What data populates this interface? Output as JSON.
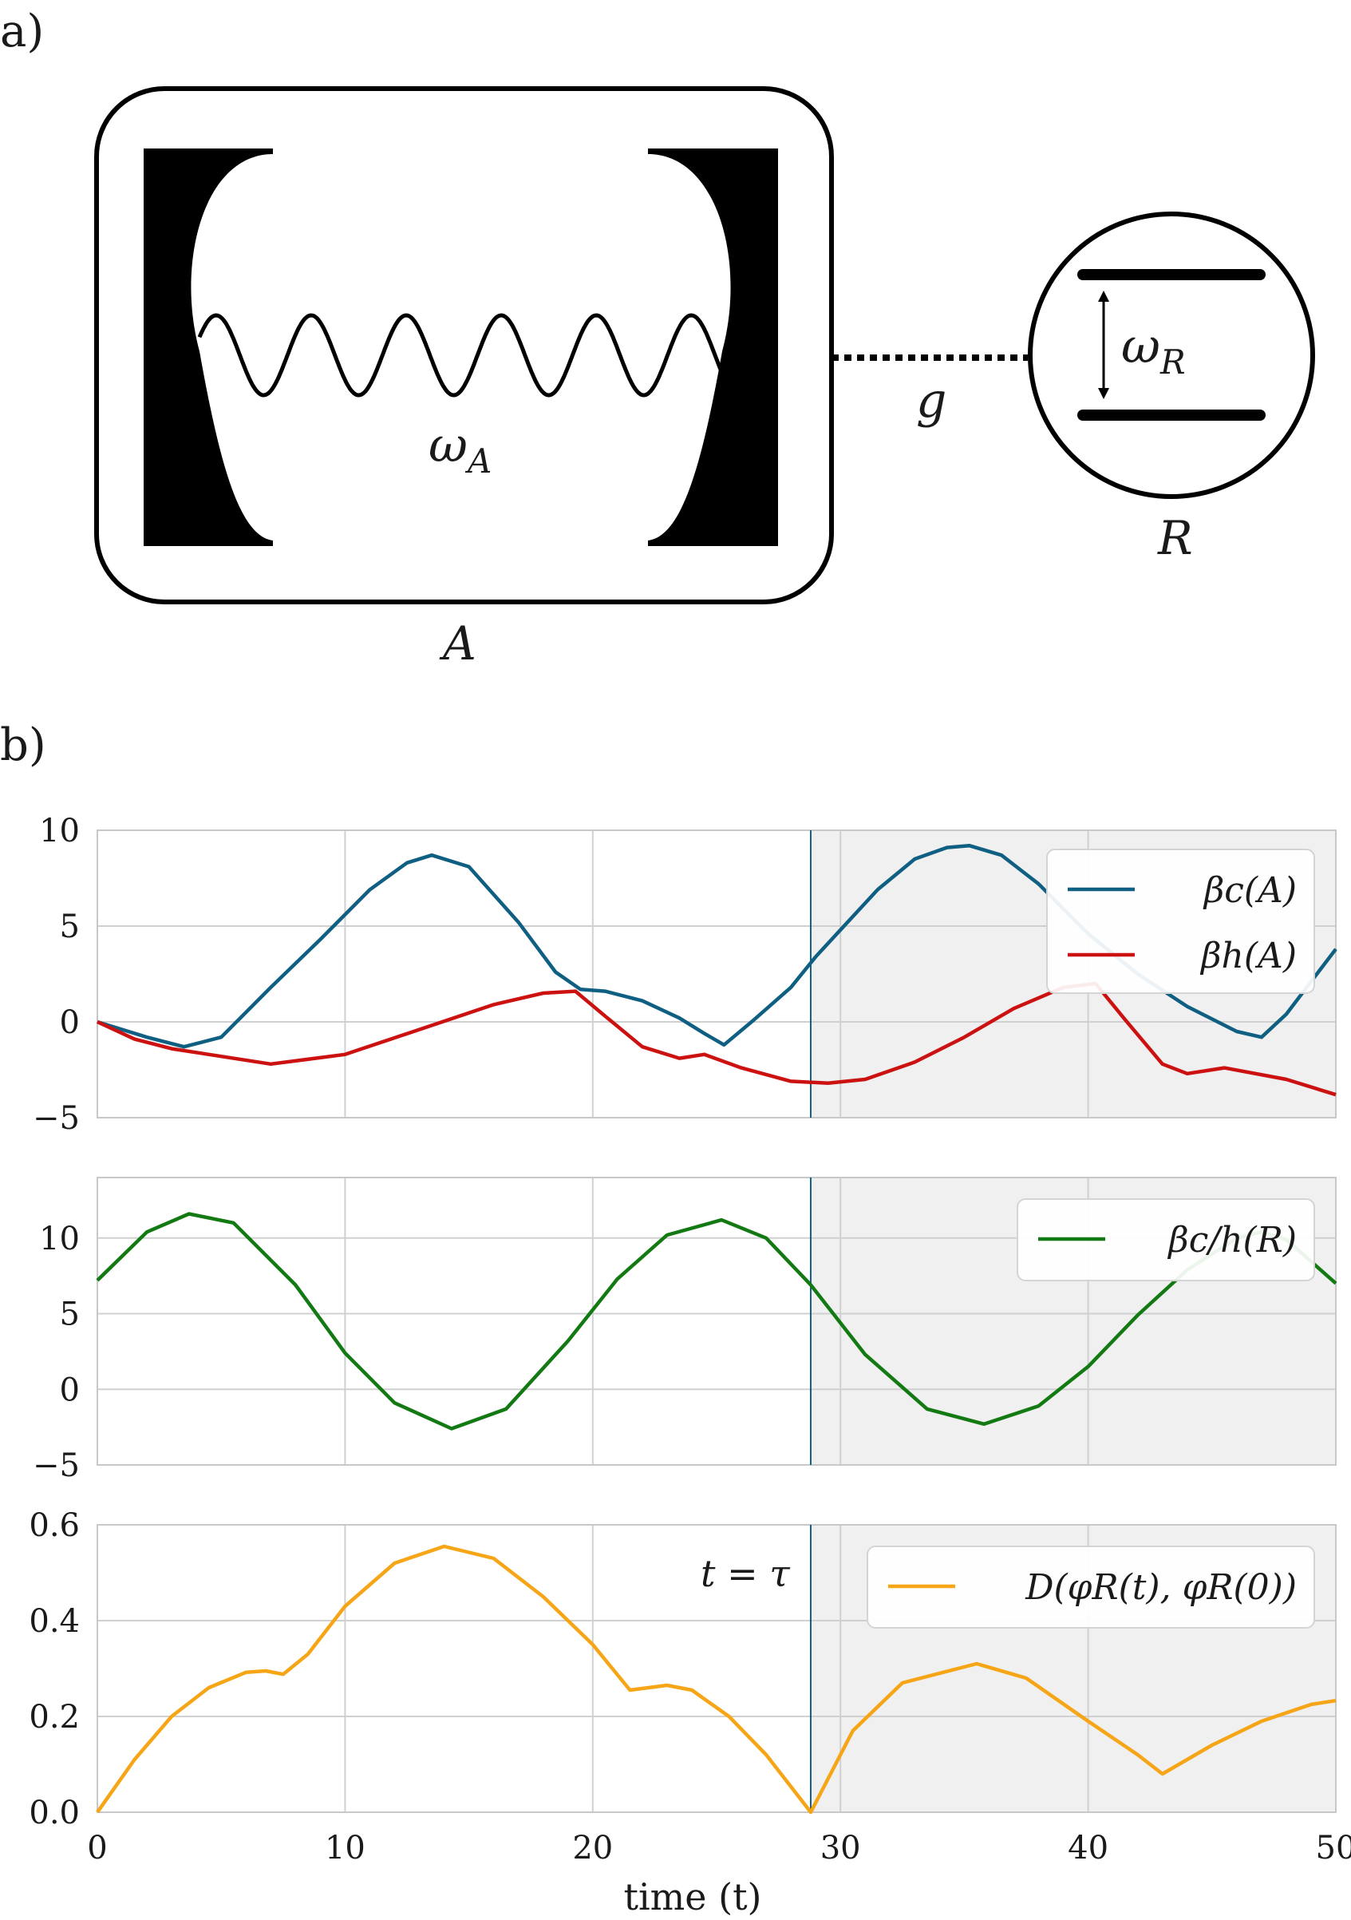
{
  "panel_a": {
    "panel_label": "a)",
    "cavity_label": "A",
    "cavity_freq": "ω",
    "cavity_freq_sub": "A",
    "coupling_label": "g",
    "qubit_label": "R",
    "qubit_freq": "ω",
    "qubit_freq_sub": "R"
  },
  "panel_b": {
    "panel_label": "b)",
    "xlabel": "time (t)",
    "tau_label": "t = τ"
  },
  "colors": {
    "beta_c": "#0f5f82",
    "beta_h": "#cc1111",
    "beta_ch": "#137a13",
    "distance": "#f5a516",
    "shade": "#f0f0f0",
    "grid": "#d0d0d0",
    "vline": "#0f5f82"
  },
  "chart_data": [
    {
      "type": "line",
      "title": "",
      "xlabel": "",
      "ylabel": "",
      "xlim": [
        0,
        50
      ],
      "ylim": [
        -5,
        10
      ],
      "yticks": [
        "10",
        "5",
        "0",
        "−5"
      ],
      "ytick_values": [
        10,
        5,
        0,
        -5
      ],
      "xticks": [
        0,
        10,
        20,
        30,
        40,
        50
      ],
      "shade_from": 28.8,
      "vline": 28.8,
      "grid": true,
      "legend_position": "top-right",
      "series": [
        {
          "name": "βc(A)",
          "color": "#0f5f82",
          "x": [
            0,
            2,
            3.5,
            5,
            7,
            9,
            11,
            12.5,
            13.5,
            15,
            17,
            18.5,
            19.5,
            20.5,
            22,
            23.5,
            24.5,
            25.3,
            26.5,
            28,
            29,
            30,
            31.5,
            33,
            34.3,
            35.2,
            36.5,
            38,
            40,
            42,
            44,
            46,
            47,
            48,
            50
          ],
          "y": [
            0,
            -0.8,
            -1.3,
            -0.8,
            1.8,
            4.3,
            6.9,
            8.3,
            8.7,
            8.1,
            5.2,
            2.6,
            1.7,
            1.6,
            1.1,
            0.2,
            -0.6,
            -1.2,
            0.1,
            1.8,
            3.4,
            4.8,
            6.9,
            8.5,
            9.1,
            9.2,
            8.7,
            7.2,
            4.6,
            2.5,
            0.8,
            -0.5,
            -0.8,
            0.4,
            3.8
          ]
        },
        {
          "name": "βh(A)",
          "color": "#cc1111",
          "x": [
            0,
            1.5,
            3,
            4.5,
            7,
            10,
            13,
            16,
            18,
            19.3,
            20.5,
            22,
            23.5,
            24.5,
            26,
            28,
            29.5,
            31,
            33,
            35,
            37,
            39,
            40.3,
            41.5,
            43,
            44,
            45.5,
            48,
            50
          ],
          "y": [
            0,
            -0.9,
            -1.4,
            -1.7,
            -2.2,
            -1.7,
            -0.4,
            0.9,
            1.5,
            1.6,
            0.3,
            -1.3,
            -1.9,
            -1.7,
            -2.4,
            -3.1,
            -3.2,
            -3.0,
            -2.1,
            -0.8,
            0.7,
            1.8,
            2.0,
            0.1,
            -2.2,
            -2.7,
            -2.4,
            -3.0,
            -3.8
          ]
        }
      ]
    },
    {
      "type": "line",
      "title": "",
      "xlabel": "",
      "ylabel": "",
      "xlim": [
        0,
        50
      ],
      "ylim": [
        -5,
        14
      ],
      "yticks": [
        "10",
        "5",
        "0",
        "−5"
      ],
      "ytick_values": [
        10,
        5,
        0,
        -5
      ],
      "xticks": [
        0,
        10,
        20,
        30,
        40,
        50
      ],
      "shade_from": 28.8,
      "vline": 28.8,
      "grid": true,
      "legend_position": "top-right",
      "series": [
        {
          "name": "βc/h(R)",
          "color": "#137a13",
          "x": [
            0,
            2,
            3.7,
            5.5,
            8,
            10,
            12,
            14.3,
            16.5,
            19,
            21,
            23,
            25.2,
            27,
            28.8,
            31,
            33.5,
            35.8,
            38,
            40,
            42,
            44,
            46,
            47,
            48,
            50
          ],
          "y": [
            7.2,
            10.4,
            11.6,
            11.0,
            6.9,
            2.4,
            -0.9,
            -2.6,
            -1.3,
            3.2,
            7.3,
            10.2,
            11.2,
            10.0,
            6.9,
            2.3,
            -1.3,
            -2.3,
            -1.1,
            1.5,
            4.9,
            7.9,
            10.0,
            10.4,
            9.9,
            7.0
          ]
        }
      ]
    },
    {
      "type": "line",
      "title": "",
      "xlabel": "time (t)",
      "ylabel": "",
      "xlim": [
        0,
        50
      ],
      "ylim": [
        0,
        0.6
      ],
      "yticks": [
        "0.6",
        "0.4",
        "0.2",
        "0.0"
      ],
      "ytick_values": [
        0.6,
        0.4,
        0.2,
        0.0
      ],
      "xticks": [
        0,
        10,
        20,
        30,
        40,
        50
      ],
      "xtick_labels": [
        "0",
        "10",
        "20",
        "30",
        "40",
        "50"
      ],
      "shade_from": 28.8,
      "vline": 28.8,
      "grid": true,
      "legend_position": "top-right",
      "series": [
        {
          "name": "D(φR(t), φR(0))",
          "color": "#f5a516",
          "x": [
            0,
            1.5,
            3,
            4.5,
            6,
            6.8,
            7.5,
            8.5,
            10,
            12,
            14,
            16,
            18,
            20,
            21.5,
            23,
            24,
            25.5,
            27,
            28.8,
            30.5,
            32.5,
            35.5,
            37.5,
            40,
            42,
            43,
            45,
            47,
            49,
            50
          ],
          "y": [
            0,
            0.11,
            0.2,
            0.26,
            0.292,
            0.295,
            0.288,
            0.33,
            0.43,
            0.52,
            0.555,
            0.53,
            0.45,
            0.35,
            0.255,
            0.265,
            0.255,
            0.2,
            0.12,
            0.0,
            0.17,
            0.27,
            0.31,
            0.28,
            0.19,
            0.12,
            0.08,
            0.14,
            0.19,
            0.225,
            0.233
          ]
        }
      ]
    }
  ]
}
